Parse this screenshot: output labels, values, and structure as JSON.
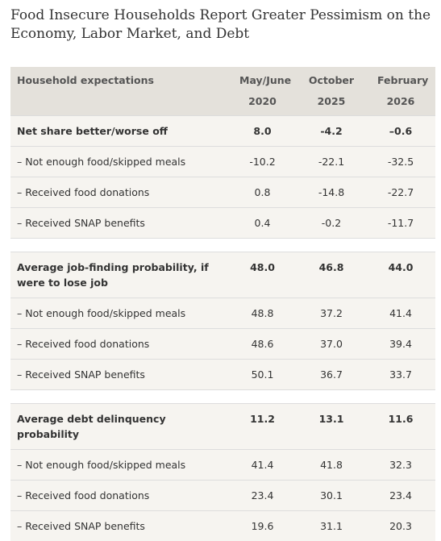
{
  "title": "Food Insecure Households Report Greater Pessimism on the Economy, Labor Market, and Debt",
  "table": {
    "header": [
      "Household expectations",
      "May/June 2020",
      "October 2025",
      "February 2026"
    ],
    "sections": [
      {
        "rows": [
          [
            "Net share better/worse off",
            "8.0",
            "-4.2",
            "–0.6"
          ],
          [
            "– Not enough food/skipped meals",
            "-10.2",
            "-22.1",
            "-32.5"
          ],
          [
            "– Received food donations",
            "0.8",
            "-14.8",
            "-22.7"
          ],
          [
            "– Received SNAP benefits",
            "0.4",
            "-0.2",
            "-11.7"
          ]
        ]
      },
      {
        "rows": [
          [
            "Average job-finding probability, if were to lose job",
            "48.0",
            "46.8",
            "44.0"
          ],
          [
            "– Not enough food/skipped meals",
            "48.8",
            "37.2",
            "41.4"
          ],
          [
            "– Received food donations",
            "48.6",
            "37.0",
            "39.4"
          ],
          [
            "– Received SNAP benefits",
            "50.1",
            "36.7",
            "33.7"
          ]
        ]
      },
      {
        "rows": [
          [
            "Average debt delinquency probability",
            "11.2",
            "13.1",
            "11.6"
          ],
          [
            "– Not enough food/skipped meals",
            "41.4",
            "41.8",
            "32.3"
          ],
          [
            "– Received food donations",
            "23.4",
            "30.1",
            "23.4"
          ],
          [
            "– Received SNAP benefits",
            "19.6",
            "31.1",
            "20.3"
          ]
        ]
      }
    ]
  }
}
